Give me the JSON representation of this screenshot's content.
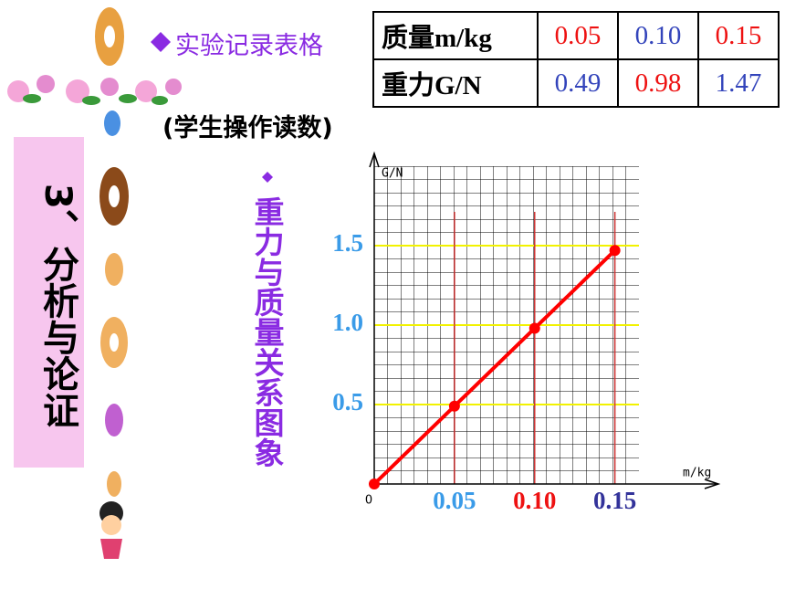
{
  "section_title": "3、分析与论证",
  "heading": "实验记录表格",
  "note": "(学生操作读数)",
  "table": {
    "rows": [
      [
        "质量m/kg",
        "0.05",
        "0.10",
        "0.15"
      ],
      [
        "重力G/N",
        "0.49",
        "0.98",
        "1.47"
      ]
    ],
    "colors": [
      [
        "#000000",
        "#ee1111",
        "#3344bb",
        "#ee1111"
      ],
      [
        "#000000",
        "#3344bb",
        "#ee1111",
        "#3344bb"
      ]
    ]
  },
  "chart_data": {
    "type": "line",
    "title": "重力与质量关系图象",
    "x_label": "m/kg",
    "y_label": "G/N",
    "origin_label": "0",
    "x": [
      0,
      0.05,
      0.1,
      0.15
    ],
    "series": [
      {
        "name": "G",
        "color": "#ff0000",
        "values": [
          0,
          0.49,
          0.98,
          1.47
        ]
      }
    ],
    "xlim": [
      0,
      0.165
    ],
    "ylim": [
      0,
      2
    ],
    "xticks": [
      0.05,
      {
        "value": 0.1,
        "label": "0.10"
      },
      0.15
    ],
    "yticks": [
      0.5,
      {
        "value": 1,
        "label": "1.0"
      },
      1.5
    ],
    "xtick_colors": [
      "#3a9be8",
      "#ee1111",
      "#33339a"
    ],
    "ytick_color": "#3a9be8",
    "xgrid_color": "#cc3333",
    "ygrid_color": "#f2f200",
    "grid": true
  }
}
